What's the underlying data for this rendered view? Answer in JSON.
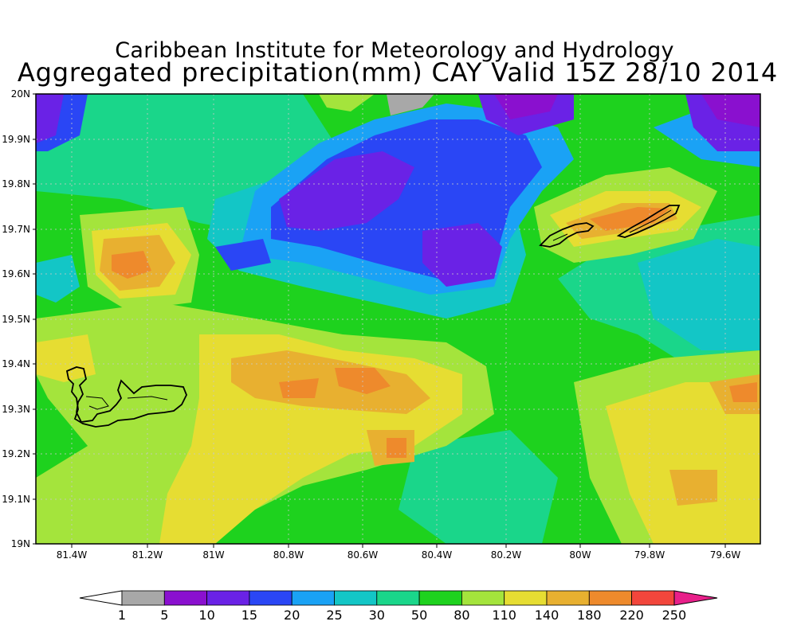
{
  "title": {
    "line1": "Caribbean Institute for Meteorology and Hydrology",
    "line2": "Aggregated precipitation(mm) CAY Valid 15Z 28/10 2014"
  },
  "axes": {
    "x_ticks": [
      "81.4W",
      "81.2W",
      "81W",
      "80.8W",
      "80.6W",
      "80.4W",
      "80.2W",
      "80W",
      "79.8W",
      "79.6W"
    ],
    "y_ticks": [
      "19N",
      "19.1N",
      "19.2N",
      "19.3N",
      "19.4N",
      "19.5N",
      "19.6N",
      "19.7N",
      "19.8N",
      "19.9N",
      "20N"
    ]
  },
  "colorbar": {
    "labels": [
      "1",
      "5",
      "10",
      "15",
      "20",
      "25",
      "30",
      "50",
      "80",
      "110",
      "140",
      "180",
      "220",
      "250"
    ],
    "colors": [
      "#a8a8a8",
      "#8a10cf",
      "#6a22e6",
      "#2a46f5",
      "#1aa2f5",
      "#13c6c6",
      "#1ad68a",
      "#1ed21e",
      "#a4e43c",
      "#e6dd32",
      "#e8b030",
      "#ee8a2c",
      "#f2463c"
    ],
    "low_color": "#ffffff",
    "high_color": "#e8208a"
  },
  "map_regions": {
    "islands": [
      "Grand Cayman",
      "Little Cayman",
      "Cayman Brac"
    ]
  }
}
